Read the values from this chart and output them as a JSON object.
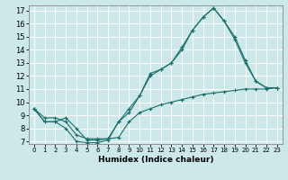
{
  "xlabel": "Humidex (Indice chaleur)",
  "bg_color": "#cce8e8",
  "line_color": "#1a6e6a",
  "grid_color": "#ffffff",
  "xlim": [
    -0.5,
    23.5
  ],
  "ylim": [
    6.8,
    17.4
  ],
  "xticks": [
    0,
    1,
    2,
    3,
    4,
    5,
    6,
    7,
    8,
    9,
    10,
    11,
    12,
    13,
    14,
    15,
    16,
    17,
    18,
    19,
    20,
    21,
    22,
    23
  ],
  "yticks": [
    7,
    8,
    9,
    10,
    11,
    12,
    13,
    14,
    15,
    16,
    17
  ],
  "line1_x": [
    0,
    1,
    2,
    3,
    4,
    5,
    6,
    7,
    8,
    9,
    10,
    11,
    12,
    13,
    14,
    15,
    16,
    17,
    18,
    19,
    20,
    21,
    22,
    23
  ],
  "line1_y": [
    9.5,
    8.5,
    8.5,
    8.0,
    7.0,
    6.9,
    6.9,
    7.1,
    8.5,
    9.2,
    10.5,
    12.2,
    12.5,
    13.0,
    14.2,
    15.5,
    16.5,
    17.2,
    16.2,
    14.8,
    13.0,
    11.6,
    11.1,
    11.1
  ],
  "line2_x": [
    0,
    1,
    2,
    3,
    4,
    5,
    6,
    7,
    8,
    9,
    10,
    11,
    12,
    13,
    14,
    15,
    16,
    17,
    18,
    19,
    20,
    21,
    22,
    23
  ],
  "line2_y": [
    9.5,
    8.5,
    8.5,
    8.8,
    8.0,
    7.1,
    7.1,
    7.2,
    8.5,
    9.5,
    10.5,
    12.0,
    12.5,
    13.0,
    14.0,
    15.5,
    16.5,
    17.2,
    16.2,
    15.0,
    13.2,
    11.6,
    11.1,
    11.1
  ],
  "line3_x": [
    0,
    1,
    2,
    3,
    4,
    5,
    6,
    7,
    8,
    9,
    10,
    11,
    12,
    13,
    14,
    15,
    16,
    17,
    18,
    19,
    20,
    21,
    22,
    23
  ],
  "line3_y": [
    9.5,
    8.8,
    8.8,
    8.5,
    7.5,
    7.2,
    7.2,
    7.2,
    7.3,
    8.5,
    9.2,
    9.5,
    9.8,
    10.0,
    10.2,
    10.4,
    10.6,
    10.7,
    10.8,
    10.9,
    11.0,
    11.0,
    11.0,
    11.1
  ]
}
